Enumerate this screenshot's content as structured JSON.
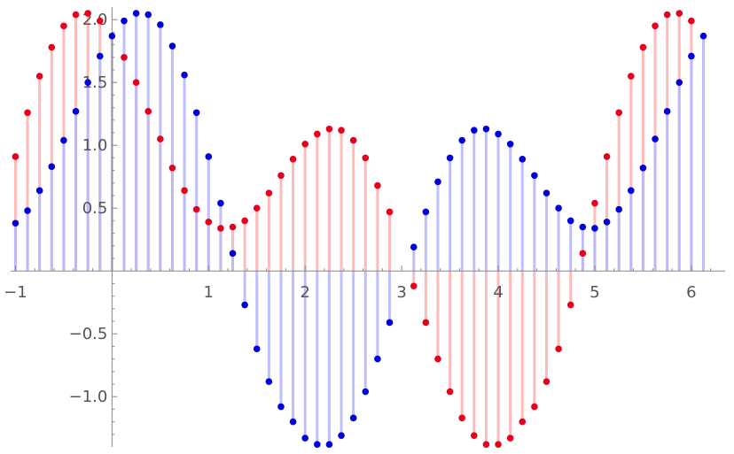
{
  "chart_data": {
    "type": "stem",
    "title": "",
    "xlabel": "",
    "ylabel": "",
    "xlim": [
      -1.05,
      6.35
    ],
    "ylim": [
      -1.4,
      2.1
    ],
    "x_ticks": [
      {
        "value": -1,
        "label": "−1"
      },
      {
        "value": 1,
        "label": "1"
      },
      {
        "value": 2,
        "label": "2"
      },
      {
        "value": 3,
        "label": "3"
      },
      {
        "value": 4,
        "label": "4"
      },
      {
        "value": 5,
        "label": "5"
      },
      {
        "value": 6,
        "label": "6"
      }
    ],
    "y_ticks": [
      {
        "value": -1.0,
        "label": "−1.0"
      },
      {
        "value": -0.5,
        "label": "−0.5"
      },
      {
        "value": 0.5,
        "label": "0.5"
      },
      {
        "value": 1.0,
        "label": "1.0"
      },
      {
        "value": 1.5,
        "label": "1.5"
      },
      {
        "value": 2.0,
        "label": "2.0"
      }
    ],
    "x": [
      -1.0,
      -0.875,
      -0.75,
      -0.625,
      -0.5,
      -0.375,
      -0.25,
      -0.125,
      0.0,
      0.125,
      0.25,
      0.375,
      0.5,
      0.625,
      0.75,
      0.875,
      1.0,
      1.125,
      1.25,
      1.375,
      1.5,
      1.625,
      1.75,
      1.875,
      2.0,
      2.125,
      2.25,
      2.375,
      2.5,
      2.625,
      2.75,
      2.875,
      3.0,
      3.125,
      3.25,
      3.375,
      3.5,
      3.625,
      3.75,
      3.875,
      4.0,
      4.125,
      4.25,
      4.375,
      4.5,
      4.625,
      4.75,
      4.875,
      5.0,
      5.125,
      5.25,
      5.375,
      5.5,
      5.625,
      5.75,
      5.875,
      6.0,
      6.125,
      6.25
    ],
    "series": [
      {
        "color": "#e8001c",
        "stem_color": "#ffb3b3",
        "values": [
          0.91,
          1.26,
          1.55,
          1.78,
          1.95,
          2.04,
          2.05,
          1.99,
          null,
          1.7,
          1.5,
          1.27,
          1.05,
          0.82,
          0.64,
          0.49,
          0.39,
          0.34,
          0.35,
          0.4,
          0.5,
          0.62,
          0.76,
          0.89,
          1.01,
          1.09,
          1.13,
          1.12,
          1.04,
          0.9,
          0.68,
          0.47,
          null,
          -0.12,
          -0.41,
          -0.7,
          -0.96,
          -1.17,
          -1.31,
          -1.38,
          -1.38,
          -1.33,
          -1.2,
          -1.08,
          -0.88,
          -0.62,
          -0.27,
          0.14,
          0.54,
          0.91,
          1.26,
          1.55,
          1.78,
          1.95,
          2.04,
          2.05,
          1.99,
          null,
          null
        ]
      },
      {
        "color": "#0000dd",
        "stem_color": "#b8b8ff",
        "values": [
          0.38,
          0.48,
          0.64,
          0.83,
          1.04,
          1.27,
          1.5,
          1.71,
          1.87,
          1.99,
          2.05,
          2.04,
          1.96,
          1.79,
          1.56,
          1.26,
          0.91,
          0.54,
          0.14,
          -0.27,
          -0.62,
          -0.88,
          -1.08,
          -1.2,
          -1.33,
          -1.38,
          -1.38,
          -1.31,
          -1.17,
          -0.96,
          -0.7,
          -0.41,
          null,
          0.19,
          0.47,
          0.71,
          0.9,
          1.04,
          1.12,
          1.13,
          1.09,
          1.01,
          0.89,
          0.76,
          0.62,
          0.5,
          0.4,
          0.35,
          0.34,
          0.39,
          0.49,
          0.64,
          0.82,
          1.05,
          1.27,
          1.5,
          1.71,
          1.87,
          null
        ]
      }
    ],
    "grid": false,
    "legend": "none"
  }
}
